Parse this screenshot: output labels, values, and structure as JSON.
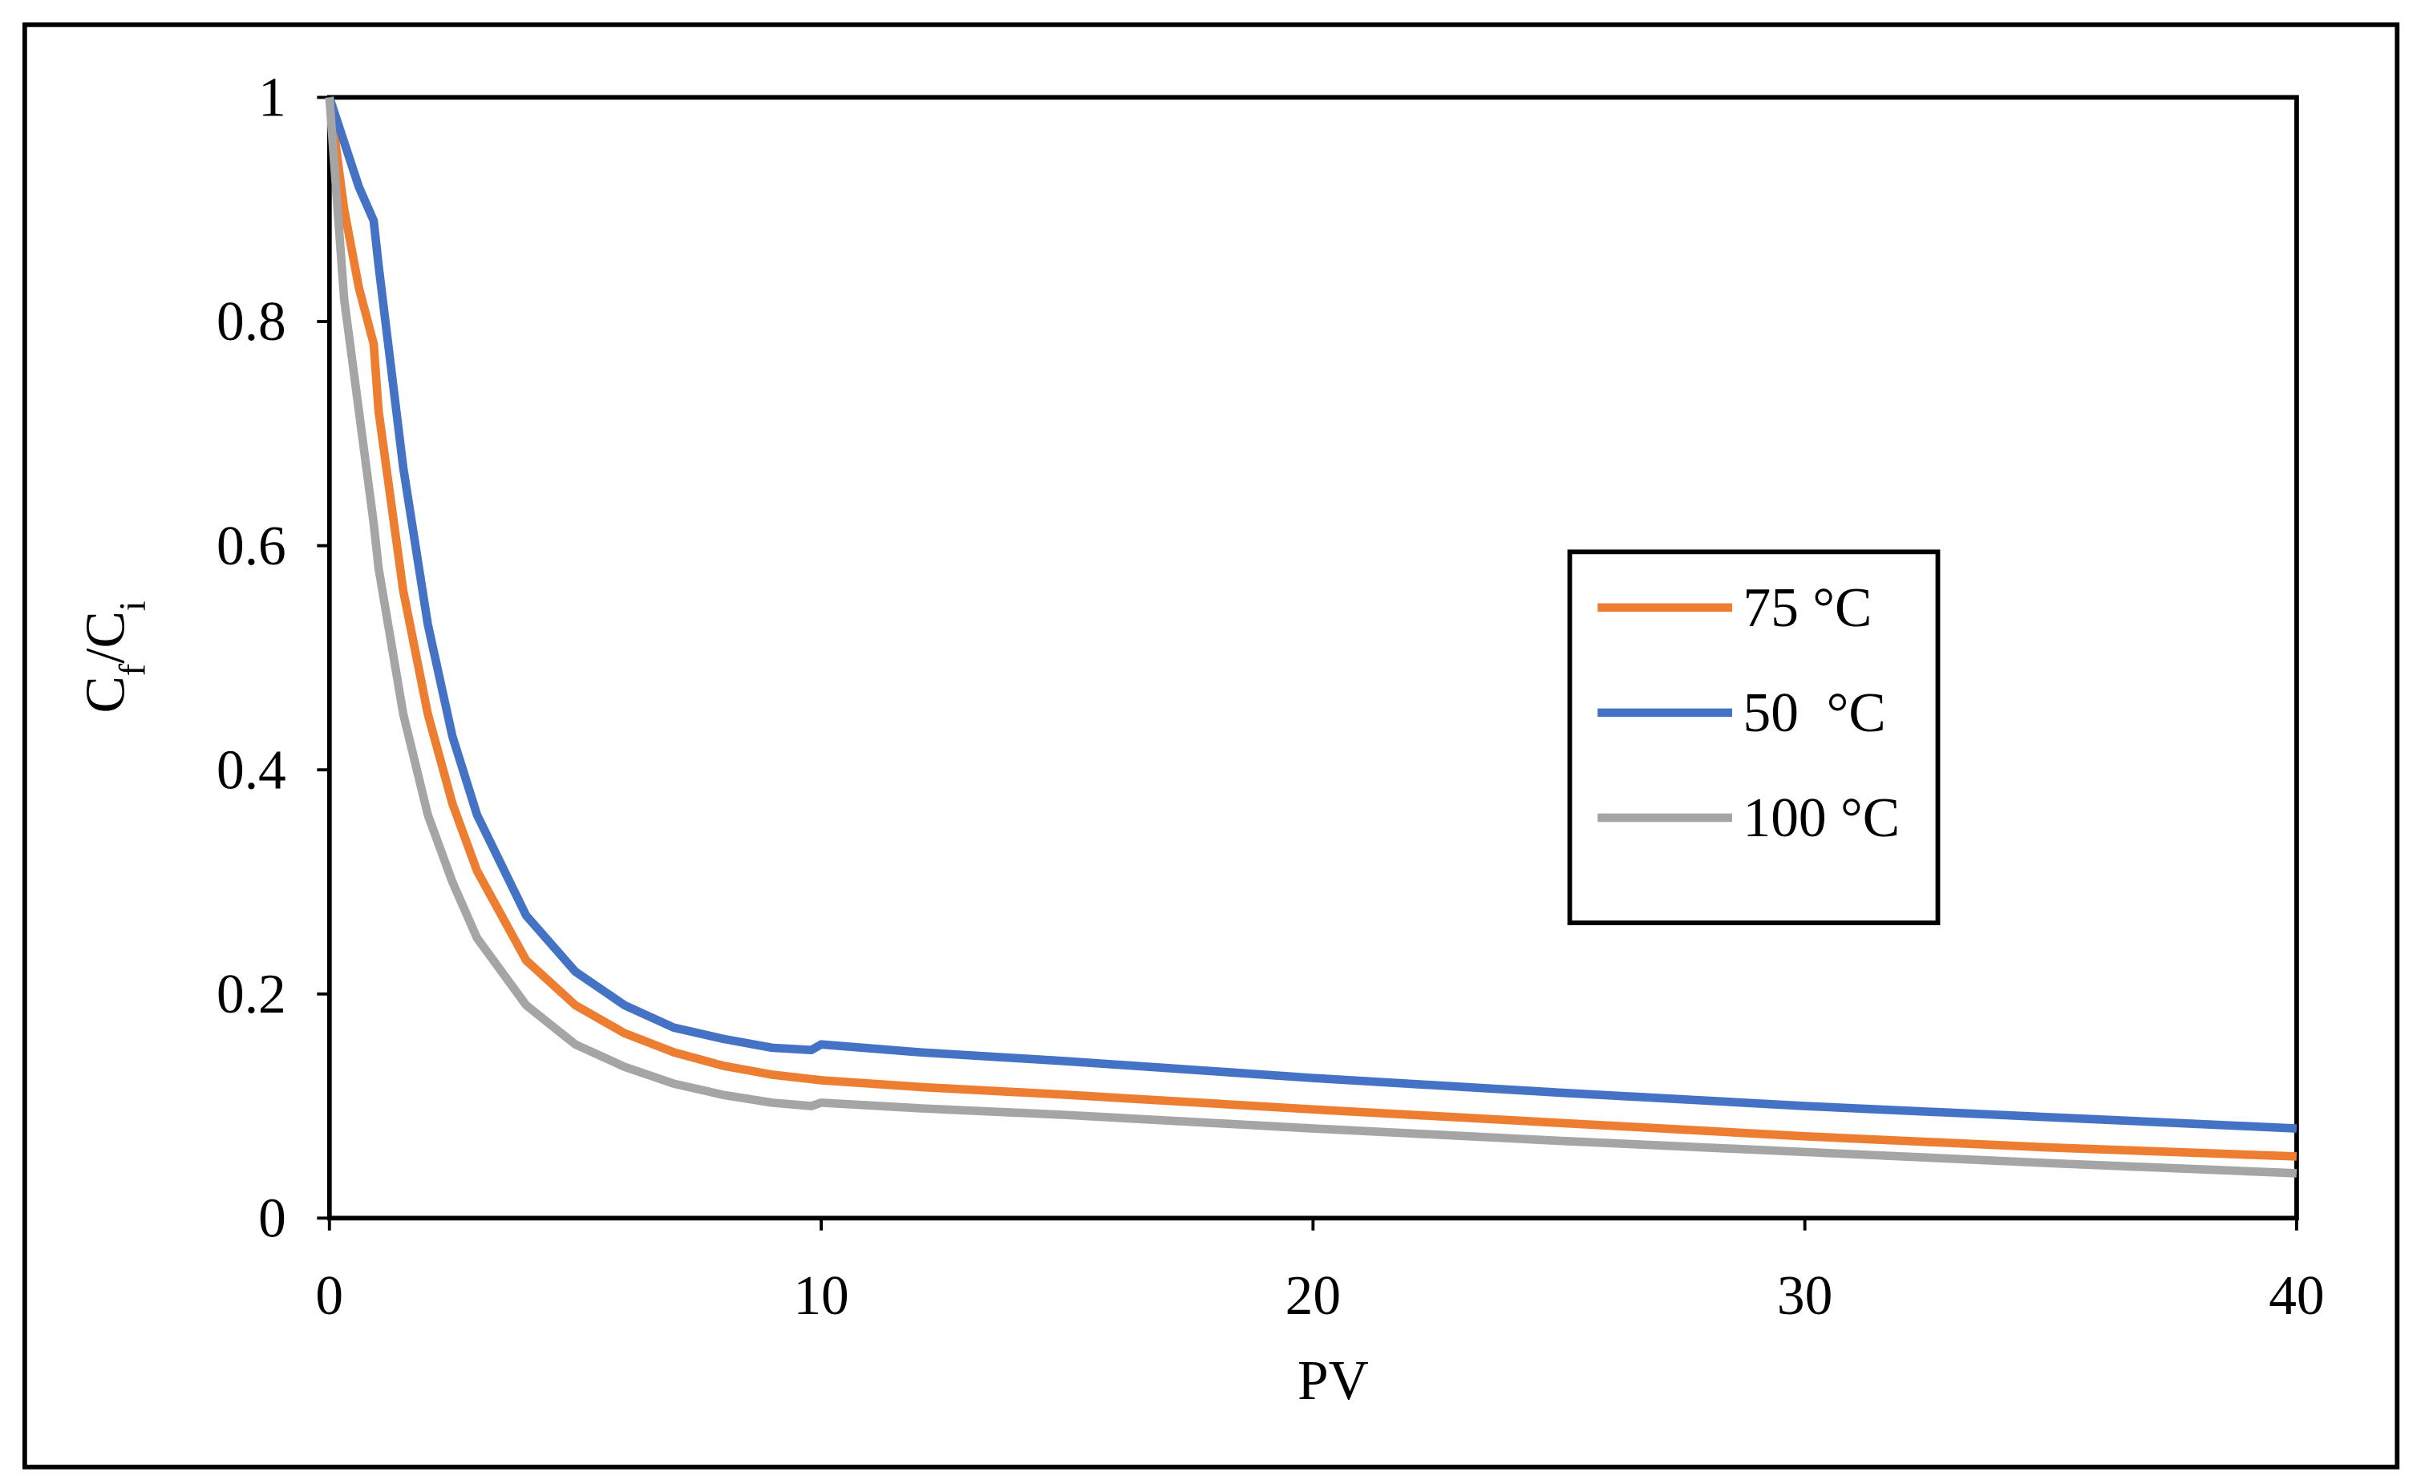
{
  "chart_data": {
    "type": "line",
    "x_label": "PV",
    "y_label": [
      "C",
      "f",
      "/C",
      "i"
    ],
    "x": [
      0,
      0.3,
      0.6,
      0.9,
      1,
      1.5,
      2,
      2.5,
      3,
      4,
      5,
      6,
      7,
      8,
      9,
      9.8,
      10,
      12,
      15,
      20,
      25,
      30,
      35,
      40
    ],
    "series": [
      {
        "name": "75 °C",
        "color": "#ed7d31",
        "values": [
          1,
          0.9,
          0.83,
          0.78,
          0.72,
          0.56,
          0.45,
          0.37,
          0.31,
          0.23,
          0.19,
          0.165,
          0.148,
          0.136,
          0.128,
          0.124,
          0.123,
          0.117,
          0.11,
          0.097,
          0.085,
          0.073,
          0.063,
          0.055
        ]
      },
      {
        "name": "50  °C",
        "color": "#4472c4",
        "values": [
          1,
          0.96,
          0.92,
          0.89,
          0.85,
          0.67,
          0.53,
          0.43,
          0.36,
          0.27,
          0.22,
          0.19,
          0.17,
          0.16,
          0.152,
          0.15,
          0.155,
          0.148,
          0.14,
          0.125,
          0.112,
          0.1,
          0.09,
          0.08
        ]
      },
      {
        "name": "100 °C",
        "color": "#a5a5a5",
        "values": [
          1,
          0.82,
          0.72,
          0.62,
          0.58,
          0.45,
          0.36,
          0.3,
          0.25,
          0.19,
          0.155,
          0.135,
          0.12,
          0.11,
          0.103,
          0.1,
          0.103,
          0.098,
          0.092,
          0.08,
          0.069,
          0.059,
          0.049,
          0.04
        ]
      }
    ],
    "xlim": [
      0,
      40
    ],
    "xticks": [
      0,
      10,
      20,
      30,
      40
    ],
    "ylim": [
      0,
      1
    ],
    "yticks": [
      0,
      0.2,
      0.4,
      0.6,
      0.8,
      1
    ],
    "legend": "right"
  }
}
